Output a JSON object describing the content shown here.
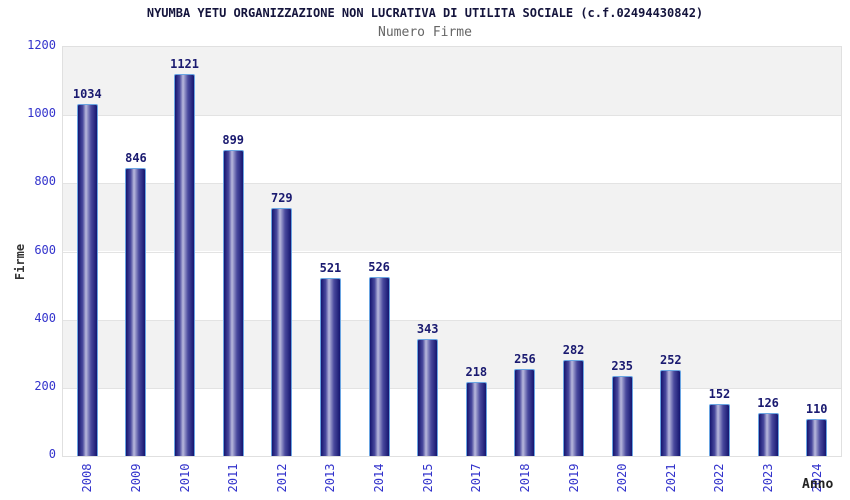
{
  "title": "NYUMBA YETU ORGANIZZAZIONE NON LUCRATIVA DI UTILITA SOCIALE (c.f.02494430842)",
  "subtitle": "Numero Firme",
  "chart_data": {
    "type": "bar",
    "categories": [
      "2008",
      "2009",
      "2010",
      "2011",
      "2012",
      "2013",
      "2014",
      "2015",
      "2017",
      "2018",
      "2019",
      "2020",
      "2021",
      "2022",
      "2023",
      "2024"
    ],
    "values": [
      1034,
      846,
      1121,
      899,
      729,
      521,
      526,
      343,
      218,
      256,
      282,
      235,
      252,
      152,
      126,
      110
    ],
    "title": "NYUMBA YETU ORGANIZZAZIONE NON LUCRATIVA DI UTILITA SOCIALE (c.f.02494430842)",
    "subtitle": "Numero Firme",
    "xlabel": "Anno",
    "ylabel": "Firme",
    "ylim": [
      0,
      1200
    ],
    "yticks": [
      0,
      200,
      400,
      600,
      800,
      1000,
      1200
    ],
    "grid": "horizontal alternating bands every 200 units, gray band at top (1000-1200)",
    "legend": "none",
    "bar_labels_shown": true
  },
  "colors": {
    "bar_gradient_dark": "#151570",
    "bar_gradient_mid": "#4a4a9e",
    "bar_gradient_light": "#b9b9dd",
    "bar_border": "#6aa5e2",
    "value_label": "#1a1a70",
    "tick_label": "#3333cc",
    "band_gray": "#f2f2f2",
    "band_white": "#ffffff",
    "gridline": "#e3e3e3",
    "plot_border": "#e0e0e0",
    "title_color": "#14143c",
    "subtitle_color": "#666666",
    "axis_title_color": "#333333"
  }
}
